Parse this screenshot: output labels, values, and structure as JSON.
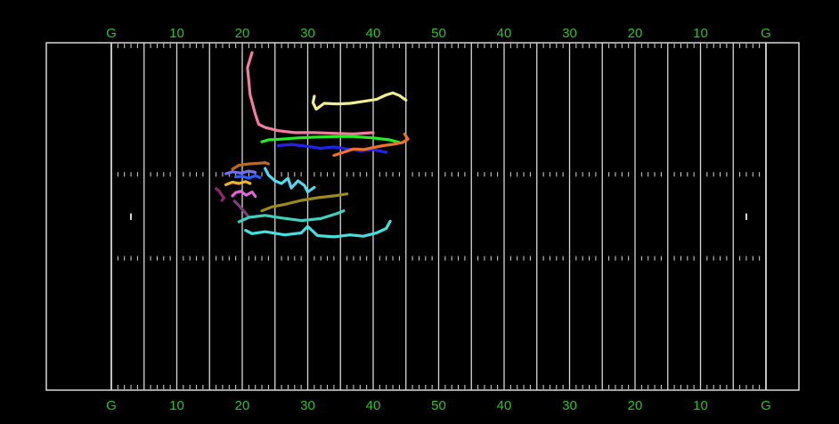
{
  "field": {
    "colors": {
      "background": "#000000",
      "lines": "#d8d8d8",
      "labels": "#2fc02f"
    },
    "top_labels": [
      "G",
      "10",
      "20",
      "30",
      "40",
      "50",
      "40",
      "30",
      "20",
      "10",
      "G"
    ],
    "bottom_labels": [
      "G",
      "10",
      "20",
      "30",
      "40",
      "50",
      "40",
      "30",
      "20",
      "10",
      "G"
    ]
  },
  "tracks": [
    {
      "color": "#f07ea0",
      "yard": [
        21.5,
        20.8,
        21.2,
        22.0,
        22.5,
        23.5,
        25.5,
        28.0,
        31.0,
        34.0,
        37.0,
        40.0
      ],
      "width": [
        1.5,
        3.8,
        8.0,
        11.0,
        12.5,
        13.0,
        13.5,
        13.8,
        13.8,
        13.9,
        14.0,
        13.8
      ]
    },
    {
      "color": "#f0ee90",
      "yard": [
        31.0,
        30.8,
        31.3,
        32.5,
        34.5,
        36.5,
        38.5,
        40.5,
        42.0,
        43.0,
        44.0,
        45.0
      ],
      "width": [
        8.2,
        9.2,
        10.2,
        9.3,
        9.4,
        9.3,
        9.0,
        8.7,
        8.0,
        7.7,
        8.1,
        8.8
      ]
    },
    {
      "color": "#22ee22",
      "yard": [
        23.0,
        24.0,
        26.0,
        28.5,
        31.0,
        34.0,
        37.0,
        40.0,
        42.5,
        44.0
      ],
      "width": [
        15.2,
        14.9,
        14.8,
        14.6,
        14.5,
        14.4,
        14.4,
        14.6,
        14.9,
        15.3
      ]
    },
    {
      "color": "#2222ee",
      "yard": [
        25.5,
        27.5,
        30.0,
        32.0,
        34.0,
        36.0,
        38.0,
        40.0,
        42.0
      ],
      "width": [
        15.8,
        15.6,
        15.9,
        16.2,
        16.0,
        16.3,
        16.6,
        16.4,
        16.8
      ]
    },
    {
      "color": "#f07030",
      "yard": [
        34.0,
        35.5,
        37.0,
        38.5,
        40.0,
        41.5,
        43.0,
        44.5,
        45.3,
        44.8
      ],
      "width": [
        17.3,
        16.8,
        16.3,
        16.4,
        16.1,
        15.8,
        15.6,
        15.3,
        14.8,
        14.0
      ]
    },
    {
      "color": "#b86a26",
      "yard": [
        18.5,
        19.5,
        21.0,
        22.5,
        23.5,
        24.0
      ],
      "width": [
        19.4,
        18.8,
        18.6,
        18.5,
        18.4,
        18.6
      ]
    },
    {
      "color": "#7070f0",
      "yard": [
        17.5,
        18.5,
        19.8,
        21.0,
        22.0
      ],
      "width": [
        20.1,
        19.8,
        20.0,
        19.7,
        19.9
      ]
    },
    {
      "color": "#2b5cff",
      "yard": [
        19.0,
        20.0,
        21.0,
        22.0,
        22.7
      ],
      "width": [
        20.6,
        20.5,
        20.8,
        20.4,
        20.7
      ]
    },
    {
      "color": "#55d7ee",
      "yard": [
        23.5,
        24.0,
        25.0,
        26.0,
        27.0,
        27.5,
        28.5,
        29.5,
        30.0,
        31.0
      ],
      "width": [
        19.3,
        20.3,
        21.2,
        21.6,
        20.8,
        22.3,
        21.2,
        21.9,
        22.9,
        22.2
      ]
    },
    {
      "color": "#f0b030",
      "yard": [
        17.5,
        18.5,
        19.5,
        20.5,
        21.2
      ],
      "width": [
        21.8,
        21.4,
        21.6,
        21.3,
        21.6
      ]
    },
    {
      "color": "#8a2a6a",
      "yard": [
        16.0,
        16.5,
        16.8,
        17.2,
        16.9
      ],
      "width": [
        22.4,
        22.8,
        23.3,
        23.8,
        24.2
      ]
    },
    {
      "color": "#e066d8",
      "yard": [
        18.5,
        19.0,
        19.8,
        20.6,
        21.5,
        22.0
      ],
      "width": [
        23.5,
        23.0,
        22.8,
        23.4,
        22.9,
        23.6
      ]
    },
    {
      "color": "#9b8a1f",
      "yard": [
        23.0,
        24.5,
        26.5,
        29.0,
        31.5,
        34.0,
        36.0
      ],
      "width": [
        25.8,
        25.2,
        24.8,
        24.2,
        23.8,
        23.5,
        23.2
      ]
    },
    {
      "color": "#7a3f7a",
      "yard": [
        18.8,
        19.5,
        20.2,
        20.8
      ],
      "width": [
        24.3,
        25.0,
        25.8,
        26.5
      ]
    },
    {
      "color": "#40d0c0",
      "yard": [
        19.5,
        21.0,
        23.5,
        26.0,
        29.0,
        32.0,
        34.5,
        35.5
      ],
      "width": [
        27.5,
        26.8,
        26.5,
        26.9,
        27.3,
        27.0,
        26.2,
        25.8
      ]
    },
    {
      "color": "#46e0e0",
      "yard": [
        20.5,
        21.5,
        23.5,
        26.5,
        29.0,
        30.0,
        31.5,
        34.0,
        36.5,
        38.5,
        40.5,
        42.0,
        42.6
      ],
      "width": [
        28.8,
        29.3,
        29.0,
        29.5,
        29.2,
        28.2,
        29.6,
        29.8,
        29.5,
        29.7,
        29.2,
        28.5,
        27.4
      ]
    }
  ]
}
